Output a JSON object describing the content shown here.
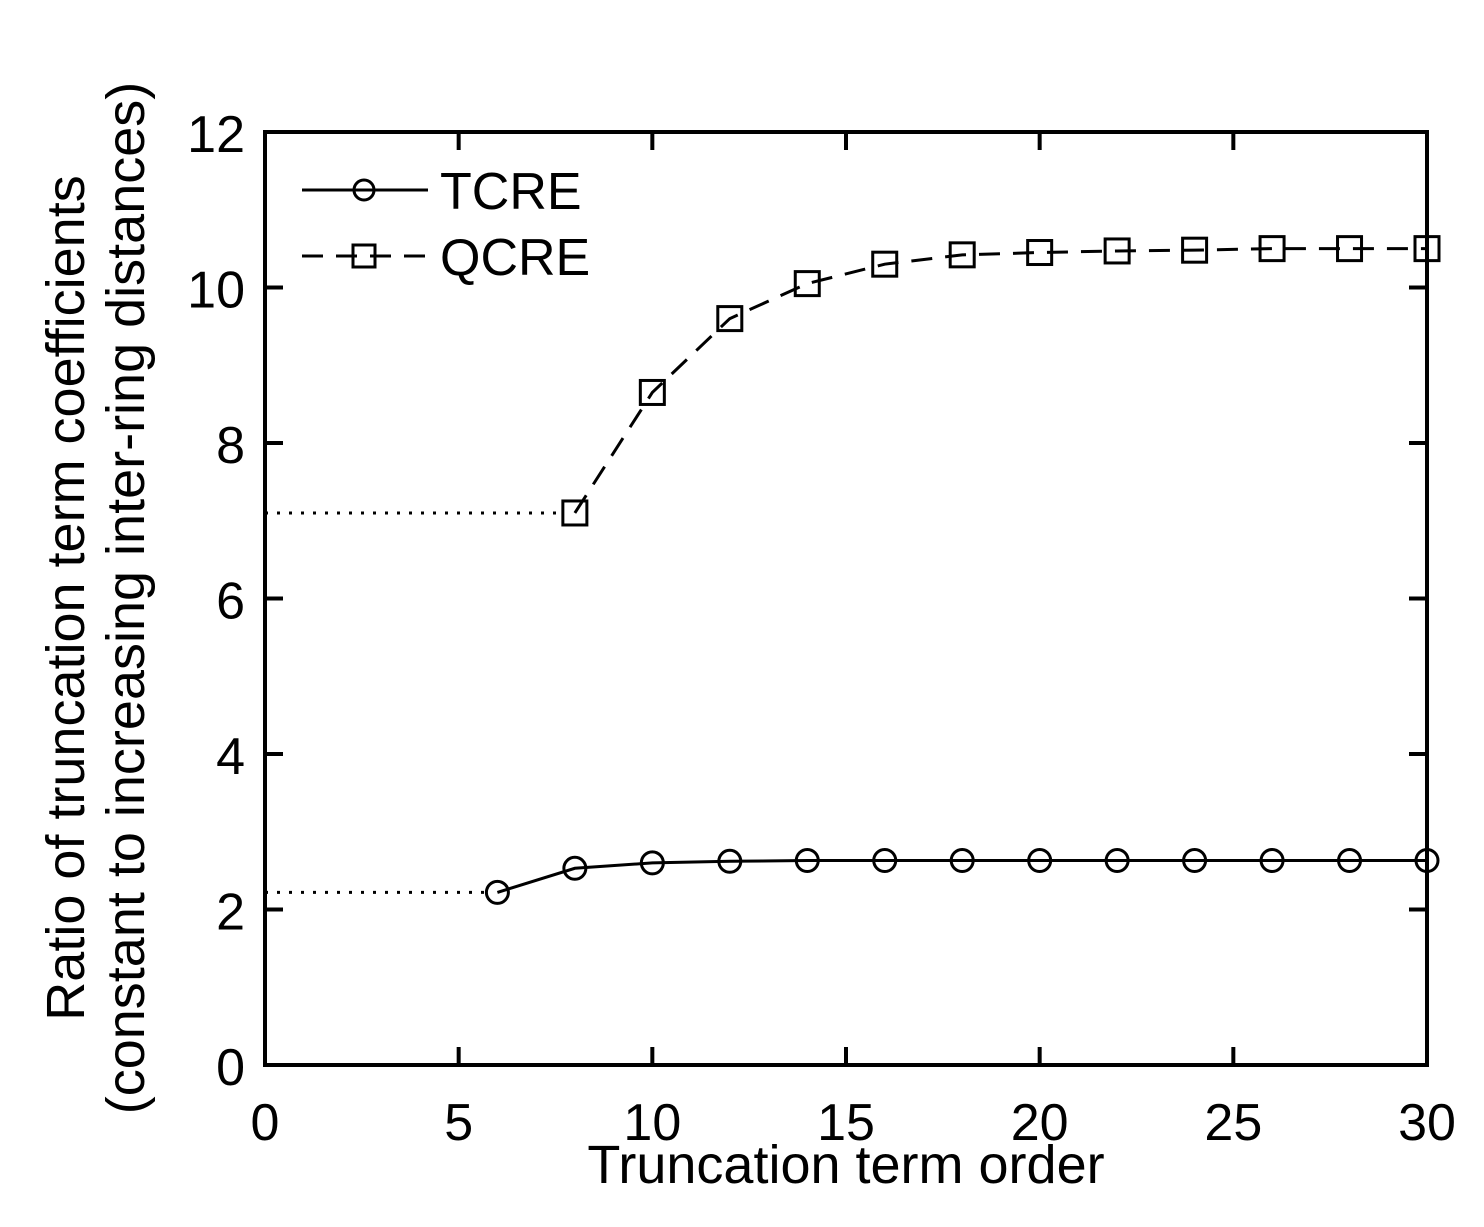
{
  "figure": {
    "background": "#ffffff",
    "ink_color": "#000000"
  },
  "chart_data": {
    "type": "line",
    "title": "",
    "xlabel": "Truncation term order",
    "ylabel": "Ratio of truncation term coefficients (constant to increasing inter-ring distances)",
    "ylabel_lines": [
      "Ratio of truncation term coefficients",
      "(constant to increasing inter-ring distances)"
    ],
    "xlim": [
      0,
      30
    ],
    "ylim": [
      0,
      12
    ],
    "xticks": [
      0,
      5,
      10,
      15,
      20,
      25,
      30
    ],
    "yticks": [
      0,
      2,
      4,
      6,
      8,
      10,
      12
    ],
    "grid": false,
    "box": true,
    "legend": {
      "position": "top-left-inside",
      "border": false,
      "entries": [
        "TCRE",
        "QCRE"
      ]
    },
    "series": [
      {
        "name": "TCRE",
        "marker": "circle",
        "line_style": "solid",
        "x": [
          6,
          8,
          10,
          12,
          14,
          16,
          18,
          20,
          22,
          24,
          26,
          28,
          30
        ],
        "y": [
          2.22,
          2.53,
          2.6,
          2.62,
          2.63,
          2.63,
          2.63,
          2.63,
          2.63,
          2.63,
          2.63,
          2.63,
          2.63
        ]
      },
      {
        "name": "QCRE",
        "marker": "square",
        "line_style": "dashed",
        "x": [
          8,
          10,
          12,
          14,
          16,
          18,
          20,
          22,
          24,
          26,
          28,
          30
        ],
        "y": [
          7.1,
          8.65,
          9.6,
          10.05,
          10.3,
          10.42,
          10.45,
          10.47,
          10.48,
          10.5,
          10.5,
          10.5
        ]
      }
    ],
    "guide_lines": [
      {
        "style": "dotted",
        "y": 2.22,
        "x_start": 0,
        "x_end": 6
      },
      {
        "style": "dotted",
        "y": 7.1,
        "x_start": 0,
        "x_end": 8
      }
    ]
  }
}
